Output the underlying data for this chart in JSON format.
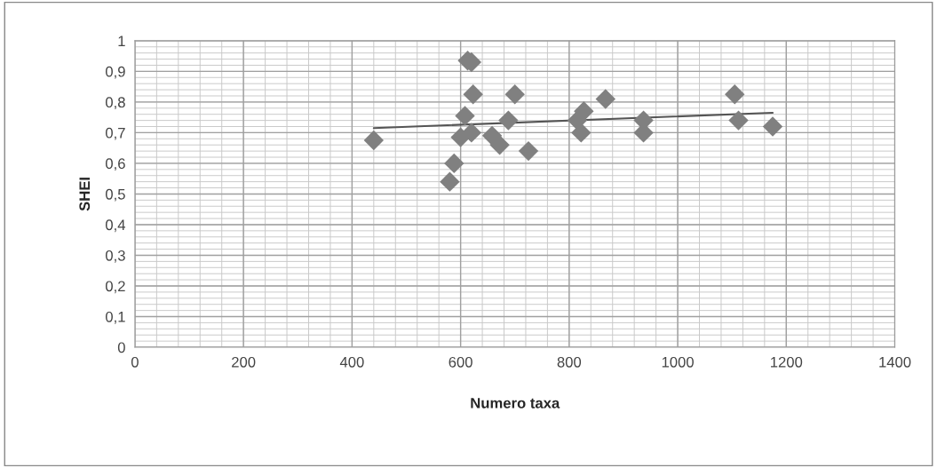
{
  "chart_data": {
    "type": "scatter",
    "xlabel": "Numero taxa",
    "ylabel": "SHEI",
    "xlim": [
      0,
      1400
    ],
    "ylim": [
      0,
      1
    ],
    "xticks": [
      0,
      200,
      400,
      600,
      800,
      1000,
      1200,
      1400
    ],
    "yticks": [
      {
        "value": 0,
        "label": "0"
      },
      {
        "value": 0.1,
        "label": "0,1"
      },
      {
        "value": 0.2,
        "label": "0,2"
      },
      {
        "value": 0.3,
        "label": "0,3"
      },
      {
        "value": 0.4,
        "label": "0,4"
      },
      {
        "value": 0.5,
        "label": "0,5"
      },
      {
        "value": 0.6,
        "label": "0,6"
      },
      {
        "value": 0.7,
        "label": "0,7"
      },
      {
        "value": 0.8,
        "label": "0,8"
      },
      {
        "value": 0.9,
        "label": "0,9"
      },
      {
        "value": 1,
        "label": "1"
      }
    ],
    "grid": true,
    "legend": false,
    "series": [
      {
        "marker": "diamond",
        "color": "#808080",
        "x": [
          440,
          580,
          588,
          600,
          608,
          613,
          620,
          620,
          623,
          658,
          672,
          688,
          700,
          725,
          815,
          822,
          827,
          867,
          937,
          937,
          1105,
          1112,
          1175
        ],
        "values": [
          0.675,
          0.54,
          0.6,
          0.685,
          0.755,
          0.935,
          0.93,
          0.7,
          0.825,
          0.69,
          0.66,
          0.74,
          0.825,
          0.64,
          0.74,
          0.7,
          0.77,
          0.81,
          0.74,
          0.7,
          0.825,
          0.74,
          0.72
        ]
      },
      {
        "type": "line",
        "color": "#555555",
        "line_style": "solid",
        "x": [
          440,
          1175
        ],
        "values": [
          0.715,
          0.765
        ]
      }
    ]
  }
}
